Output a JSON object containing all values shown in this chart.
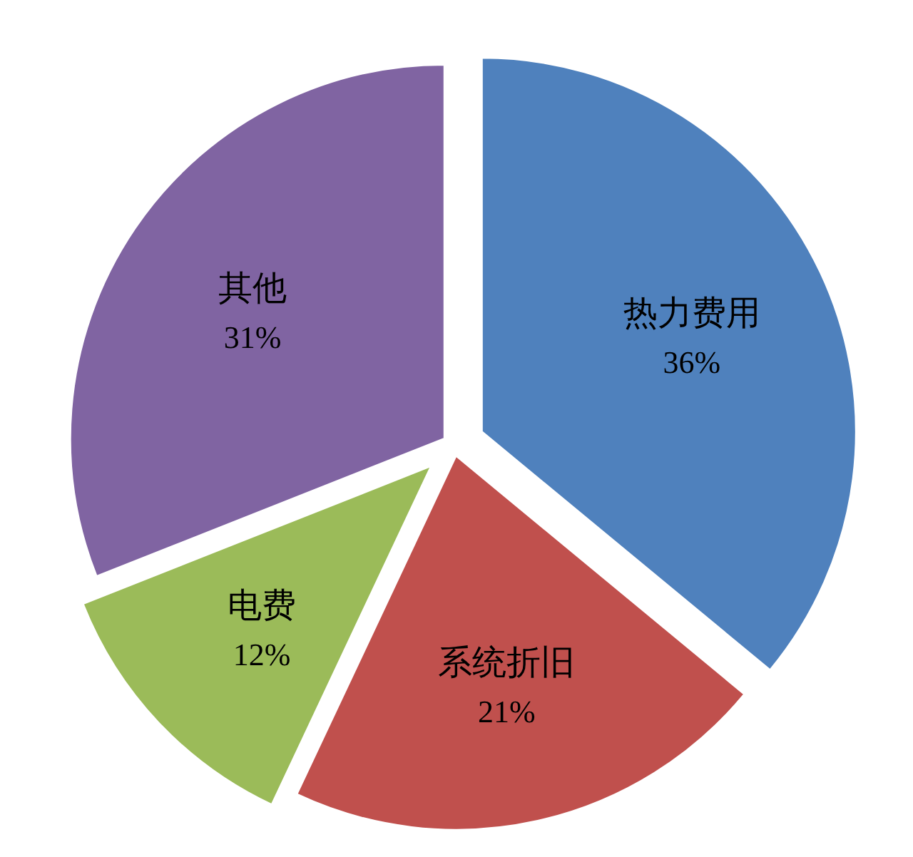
{
  "chart_data": {
    "type": "pie",
    "categories": [
      "热力费用",
      "系统折旧",
      "电费",
      "其他"
    ],
    "values": [
      36,
      21,
      12,
      31
    ],
    "colors": [
      "#4f81bd",
      "#c0504d",
      "#9bbb59",
      "#8064a2"
    ],
    "value_labels": [
      "36%",
      "21%",
      "12%",
      "31%"
    ]
  }
}
